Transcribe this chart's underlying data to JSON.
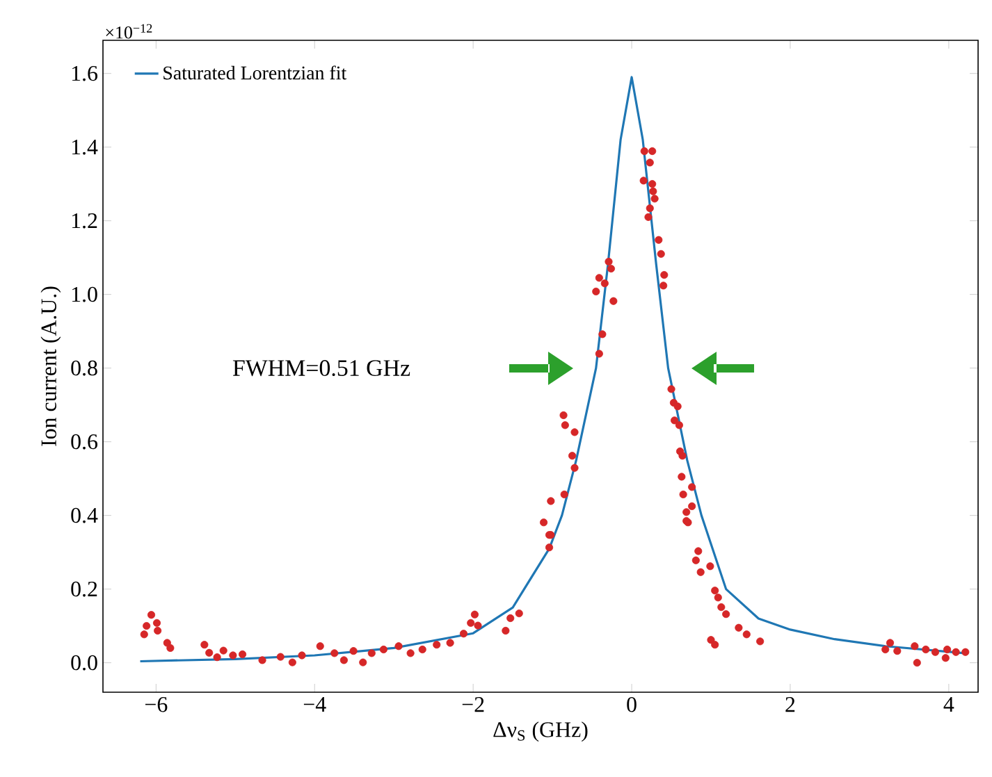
{
  "chart_data": {
    "type": "scatter",
    "xlabel": "Δν$_{S}$ (GHz)",
    "ylabel": "Ion current (A.U.)",
    "annotations": [
      "×10$^{−12}$",
      "FWHM=0.51 GHz"
    ],
    "xlim": [
      -6.67,
      4.37
    ],
    "ylim": [
      -0.08,
      1.69
    ],
    "xticks": [
      {
        "value": -6,
        "label": "−6"
      },
      {
        "value": -4,
        "label": "−4"
      },
      {
        "value": -2,
        "label": "−2"
      },
      0,
      2,
      4
    ],
    "yticks": [
      {
        "value": 0,
        "label": "0.0"
      },
      0.2,
      0.4,
      0.6,
      0.8,
      {
        "value": 1,
        "label": "1.0"
      },
      1.2,
      1.4,
      1.6
    ],
    "legend": "top left",
    "series": [
      {
        "name": "Saturated Lorentzian fit",
        "type": "line",
        "color": "#1f77b4",
        "marker": "none",
        "line_style": "solid",
        "x": [
          -6.2,
          -5,
          -4,
          -3,
          -2,
          -1.5,
          -1.04,
          -0.88,
          -0.7,
          -0.45,
          -0.3,
          -0.14,
          0,
          0.14,
          0.31,
          0.46,
          0.7,
          0.88,
          1.19,
          1.6,
          2,
          2.56,
          3.2,
          4.2
        ],
        "values": [
          0.004,
          0.01,
          0.02,
          0.04,
          0.08,
          0.15,
          0.31,
          0.4,
          0.55,
          0.8,
          1.08,
          1.42,
          1.59,
          1.42,
          1.08,
          0.8,
          0.55,
          0.4,
          0.2,
          0.12,
          0.09,
          0.064,
          0.045,
          0.026
        ]
      },
      {
        "color": "#d62728",
        "marker": "circle",
        "x": [
          -6.15,
          -6.06,
          -6.12,
          -5.99,
          -5.98,
          -5.86,
          -5.82,
          -5.39,
          -5.33,
          -5.23,
          -5.15,
          -5.03,
          -4.91,
          -4.66,
          -4.43,
          -4.28,
          -4.16,
          -3.93,
          -3.75,
          -3.63,
          -3.51,
          -3.39,
          -3.28,
          -3.13,
          -2.94,
          -2.79,
          -2.64,
          -2.46,
          -2.29,
          -2.12,
          -2.03,
          -1.98,
          -1.94,
          -1.59,
          -1.53,
          -1.42,
          -1.04,
          -1.04,
          -1.11,
          -1.02,
          -1.02,
          -0.85,
          -0.75,
          -0.72,
          -0.86,
          -0.84,
          -0.72,
          -0.41,
          -0.37,
          -0.23,
          -0.45,
          -0.41,
          -0.34,
          -0.29,
          -0.26,
          0.16,
          0.26,
          0.23,
          0.15,
          0.26,
          0.27,
          0.29,
          0.23,
          0.21,
          0.34,
          0.37,
          0.41,
          0.4,
          0.5,
          0.53,
          0.58,
          0.54,
          0.6,
          0.61,
          0.64,
          0.63,
          0.76,
          0.65,
          0.76,
          0.69,
          0.71,
          0.69,
          0.84,
          0.81,
          0.87,
          0.99,
          1.05,
          1.09,
          1.13,
          1.19,
          1.35,
          1.45,
          1.62,
          1.0,
          1.05,
          3.26,
          3.2,
          3.35,
          3.57,
          3.6,
          3.71,
          3.83,
          3.98,
          4.09,
          4.21,
          3.96
        ],
        "values": [
          0.077,
          0.13,
          0.1,
          0.108,
          0.087,
          0.054,
          0.04,
          0.049,
          0.027,
          0.015,
          0.033,
          0.02,
          0.023,
          0.007,
          0.016,
          0.001,
          0.02,
          0.045,
          0.026,
          0.007,
          0.032,
          0.001,
          0.026,
          0.036,
          0.045,
          0.026,
          0.036,
          0.049,
          0.054,
          0.079,
          0.108,
          0.131,
          0.101,
          0.087,
          0.121,
          0.134,
          0.347,
          0.313,
          0.381,
          0.347,
          0.439,
          0.457,
          0.562,
          0.529,
          0.672,
          0.645,
          0.626,
          0.839,
          0.892,
          0.982,
          1.008,
          1.045,
          1.03,
          1.089,
          1.07,
          1.389,
          1.389,
          1.358,
          1.309,
          1.3,
          1.28,
          1.26,
          1.234,
          1.21,
          1.148,
          1.11,
          1.053,
          1.024,
          0.743,
          0.706,
          0.696,
          0.658,
          0.645,
          0.574,
          0.562,
          0.505,
          0.477,
          0.457,
          0.425,
          0.409,
          0.381,
          0.385,
          0.303,
          0.278,
          0.246,
          0.262,
          0.196,
          0.177,
          0.151,
          0.132,
          0.095,
          0.077,
          0.058,
          0.062,
          0.049,
          0.054,
          0.036,
          0.032,
          0.045,
          0.0,
          0.036,
          0.029,
          0.036,
          0.029,
          0.029,
          0.013
        ]
      }
    ]
  }
}
